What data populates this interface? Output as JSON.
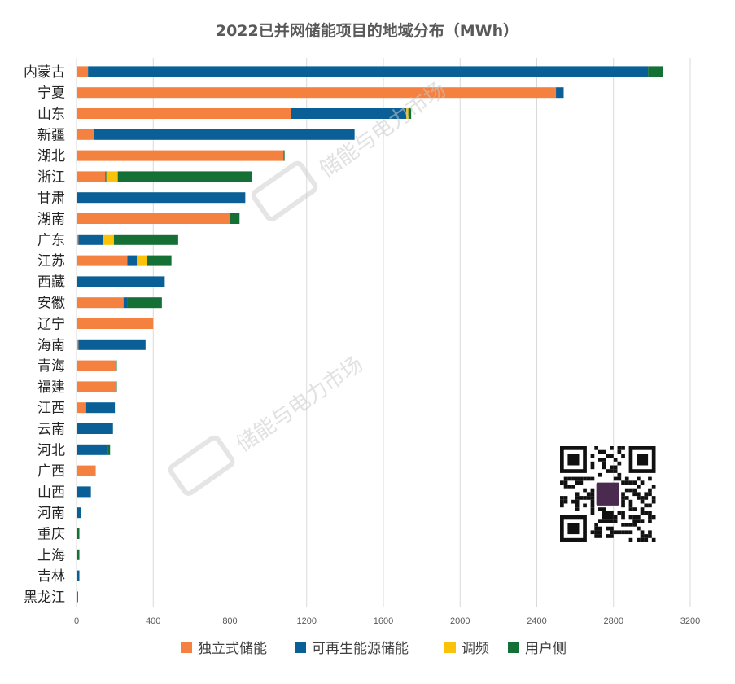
{
  "chart_data": {
    "type": "bar",
    "orientation": "horizontal",
    "stacked": true,
    "title": "2022已并网储能项目的地域分布（MWh）",
    "xlim": [
      0,
      3200
    ],
    "xticks": [
      0,
      400,
      800,
      1200,
      1600,
      2000,
      2400,
      2800,
      3200
    ],
    "grid": "vertical",
    "legend_position": "bottom",
    "categories": [
      "内蒙古",
      "宁夏",
      "山东",
      "新疆",
      "湖北",
      "浙江",
      "甘肃",
      "湖南",
      "广东",
      "江苏",
      "西藏",
      "安徽",
      "辽宁",
      "海南",
      "青海",
      "福建",
      "江西",
      "云南",
      "河北",
      "广西",
      "山西",
      "河南",
      "重庆",
      "上海",
      "吉林",
      "黑龙江"
    ],
    "series": [
      {
        "name": "独立式储能",
        "color": "#F4813F",
        "values": [
          60,
          2500,
          1120,
          90,
          1080,
          150,
          0,
          800,
          10,
          265,
          0,
          245,
          400,
          10,
          205,
          205,
          50,
          0,
          0,
          100,
          0,
          0,
          0,
          0,
          0,
          0
        ]
      },
      {
        "name": "可再生能源储能",
        "color": "#0A5F97",
        "values": [
          2920,
          40,
          600,
          1360,
          0,
          5,
          880,
          0,
          130,
          50,
          460,
          20,
          0,
          350,
          0,
          0,
          150,
          190,
          165,
          0,
          75,
          22,
          0,
          0,
          15,
          8
        ]
      },
      {
        "name": "调频",
        "color": "#FBC20A",
        "values": [
          0,
          0,
          10,
          0,
          0,
          60,
          0,
          0,
          55,
          50,
          0,
          0,
          0,
          0,
          0,
          0,
          0,
          0,
          0,
          0,
          0,
          0,
          0,
          0,
          0,
          0
        ]
      },
      {
        "name": "用户侧",
        "color": "#157035",
        "values": [
          80,
          0,
          15,
          0,
          5,
          700,
          0,
          50,
          335,
          130,
          0,
          180,
          0,
          0,
          5,
          5,
          0,
          0,
          10,
          0,
          0,
          0,
          15,
          15,
          0,
          0
        ]
      }
    ]
  },
  "watermark": {
    "text": "储能与电力市场",
    "color": "#c9c9c9"
  }
}
